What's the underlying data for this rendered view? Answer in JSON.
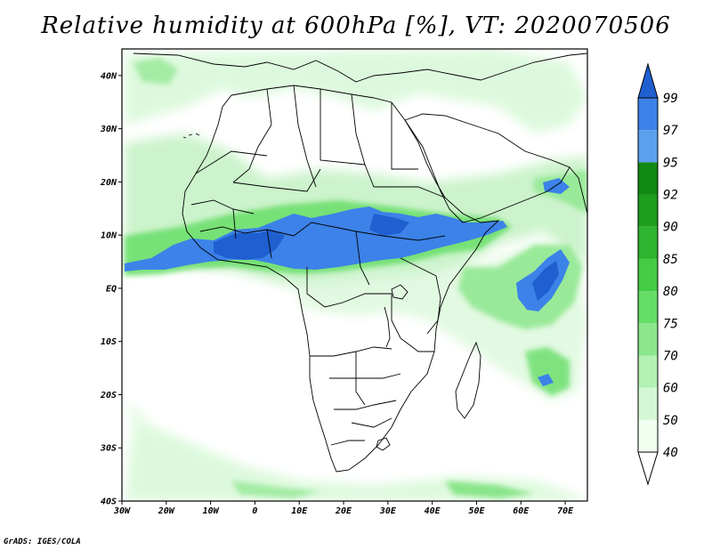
{
  "title": "Relative humidity at 600hPa [%], VT: 2020070506",
  "credit": "GrADS: IGES/COLA",
  "map": {
    "lon_labels": [
      "30W",
      "20W",
      "10W",
      "0",
      "10E",
      "20E",
      "30E",
      "40E",
      "50E",
      "60E",
      "70E"
    ],
    "lat_labels": [
      "40N",
      "30N",
      "20N",
      "10N",
      "EQ",
      "10S",
      "20S",
      "30S",
      "40S"
    ]
  },
  "colorbar": {
    "levels": [
      "40",
      "50",
      "60",
      "70",
      "75",
      "80",
      "85",
      "90",
      "92",
      "95",
      "97",
      "99"
    ],
    "colors": [
      "#f0fff0",
      "#d4f7d4",
      "#b3f0b3",
      "#8ce68c",
      "#66dd66",
      "#44cc44",
      "#2fb52f",
      "#1d9e1d",
      "#118a11",
      "#5aa0ee",
      "#3c82e8",
      "#1f5fd0"
    ]
  },
  "chart_data": {
    "type": "heatmap",
    "title": "Relative humidity at 600hPa [%], VT: 2020070506",
    "variable_units": "%",
    "lon_range": [
      -30,
      75
    ],
    "lat_range": [
      -40,
      45
    ],
    "contour_levels": [
      40,
      50,
      60,
      70,
      75,
      80,
      85,
      90,
      92,
      95,
      97,
      99
    ]
  }
}
